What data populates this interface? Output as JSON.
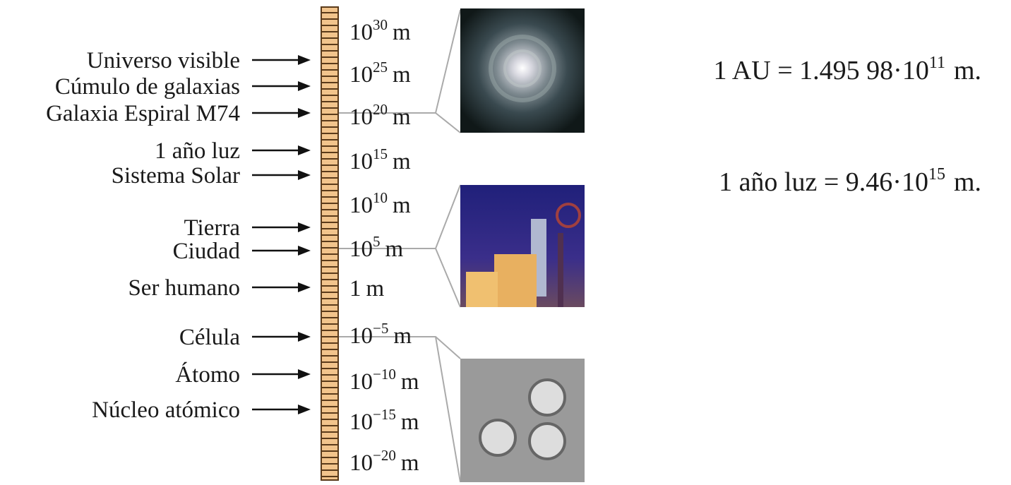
{
  "objects": [
    {
      "label": "Universo visible"
    },
    {
      "label": "Cúmulo de galaxias"
    },
    {
      "label": "Galaxia Espiral M74"
    },
    {
      "label": "1 año luz"
    },
    {
      "label": "Sistema Solar"
    },
    {
      "label": "Tierra"
    },
    {
      "label": "Ciudad"
    },
    {
      "label": "Ser humano"
    },
    {
      "label": "Célula"
    },
    {
      "label": "Átomo"
    },
    {
      "label": "Núcleo atómico"
    }
  ],
  "scale": [
    {
      "base": "10",
      "exponent": "30",
      "unit": "m"
    },
    {
      "base": "10",
      "exponent": "25",
      "unit": "m"
    },
    {
      "base": "10",
      "exponent": "20",
      "unit": "m"
    },
    {
      "base": "10",
      "exponent": "15",
      "unit": "m"
    },
    {
      "base": "10",
      "exponent": "10",
      "unit": "m"
    },
    {
      "base": "10",
      "exponent": "5",
      "unit": "m"
    },
    {
      "base": "1",
      "unit": "m"
    },
    {
      "base": "10",
      "exponent": "−5",
      "unit": "m"
    },
    {
      "base": "10",
      "exponent": "−10",
      "unit": "m"
    },
    {
      "base": "10",
      "exponent": "−15",
      "unit": "m"
    },
    {
      "base": "10",
      "exponent": "−20",
      "unit": "m"
    }
  ],
  "formulas": [
    {
      "left": "1 AU = 1.495 98·10",
      "exponent": "11",
      "unit": "m."
    },
    {
      "left": "1 año luz = 9.46·10",
      "exponent": "15",
      "unit": "m."
    }
  ]
}
